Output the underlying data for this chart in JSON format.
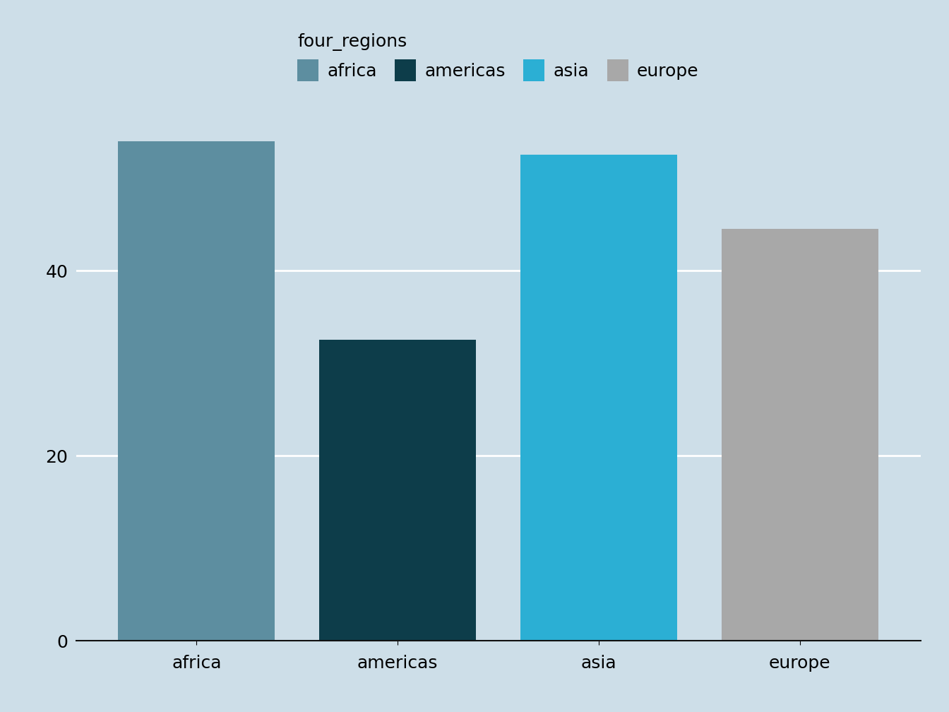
{
  "categories": [
    "africa",
    "americas",
    "asia",
    "europe"
  ],
  "values": [
    54.0,
    32.5,
    52.5,
    44.5
  ],
  "bar_colors": [
    "#5d8ea0",
    "#0d3d4a",
    "#2bafd4",
    "#a8a8a8"
  ],
  "legend_title": "four_regions",
  "background_color": "#cddee8",
  "grid_color": "#ffffff",
  "ylim": [
    0,
    60
  ],
  "yticks": [
    0,
    20,
    40
  ],
  "legend_colors": [
    "#5d8ea0",
    "#0d3d4a",
    "#2bafd4",
    "#a8a8a8"
  ],
  "legend_labels": [
    "africa",
    "americas",
    "asia",
    "europe"
  ],
  "tick_fontsize": 18,
  "legend_fontsize": 18,
  "bar_width": 0.78
}
